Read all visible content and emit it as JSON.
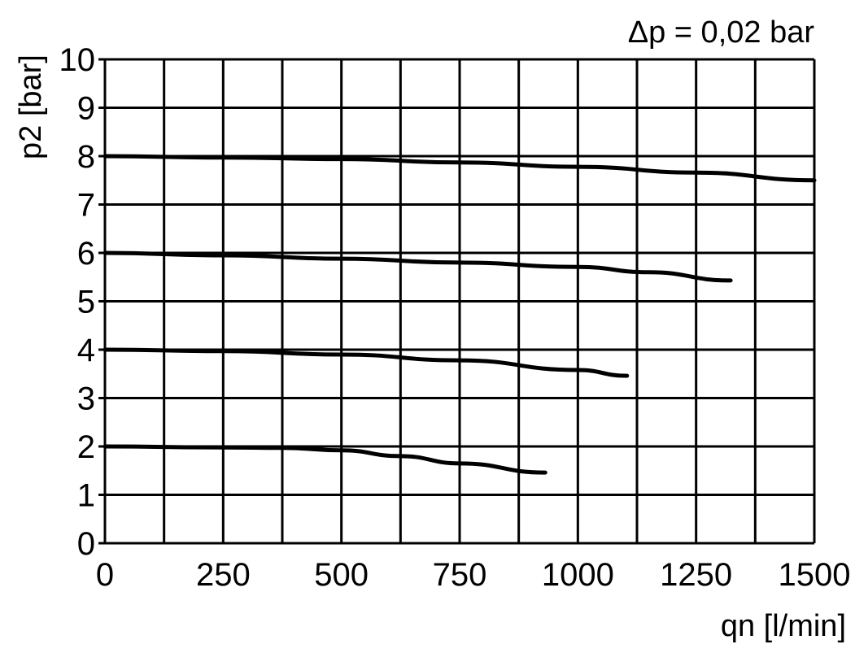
{
  "chart_data": {
    "type": "line",
    "annotation": "Δp = 0,02 bar",
    "xlabel": "qn [l/min]",
    "ylabel": "p2 [bar]",
    "xlim": [
      0,
      1500
    ],
    "ylim": [
      0,
      10
    ],
    "x_ticks": [
      "0",
      "250",
      "500",
      "750",
      "1000",
      "1250",
      "1500"
    ],
    "y_ticks": [
      "0",
      "1",
      "2",
      "3",
      "4",
      "5",
      "6",
      "7",
      "8",
      "9",
      "10"
    ],
    "grid": true,
    "x_grid_step": 125,
    "y_grid_step": 1,
    "line_color": "#000000",
    "series": [
      {
        "x": [
          0,
          250,
          500,
          750,
          1000,
          1250,
          1500
        ],
        "y": [
          8.0,
          7.97,
          7.94,
          7.87,
          7.78,
          7.66,
          7.5
        ]
      },
      {
        "x": [
          0,
          250,
          500,
          750,
          1000,
          1150,
          1323
        ],
        "y": [
          6.0,
          5.95,
          5.88,
          5.8,
          5.71,
          5.6,
          5.43
        ]
      },
      {
        "x": [
          0,
          250,
          500,
          750,
          1000,
          1104
        ],
        "y": [
          4.0,
          3.97,
          3.9,
          3.78,
          3.58,
          3.46
        ]
      },
      {
        "x": [
          0,
          250,
          375,
          500,
          625,
          750,
          931
        ],
        "y": [
          2.0,
          1.98,
          1.97,
          1.92,
          1.8,
          1.65,
          1.46
        ]
      }
    ]
  }
}
